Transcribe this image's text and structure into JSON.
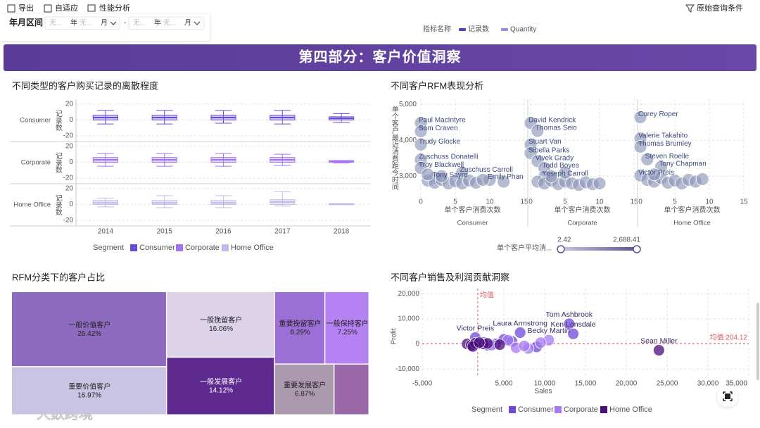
{
  "toolbar": {
    "export": "导出",
    "adaptive": "自适应",
    "performance": "性能分析",
    "query": "原始查询条件"
  },
  "filter": {
    "label": "年月区间",
    "placeholder": "无...",
    "year": "年",
    "month": "月",
    "separator": "-"
  },
  "indicator_legend": {
    "title": "指标名称",
    "items": [
      {
        "name": "记录数",
        "color": "#5b3fc4"
      },
      {
        "name": "Quantity",
        "color": "#9a8ce6"
      }
    ]
  },
  "banner": "第四部分：客户价值洞察",
  "watermark": "大数跨境",
  "chart_data": [
    {
      "type": "box",
      "title": "不同类型的客户购买记录的离散程度",
      "y_label": "记录数",
      "categories": [
        "2014",
        "2015",
        "2016",
        "2017",
        "2018"
      ],
      "ylim": [
        -27,
        26
      ],
      "yticks": [
        -20,
        0,
        20
      ],
      "grid": true,
      "legend_title": "Segment",
      "series": [
        {
          "name": "Consumer",
          "color": "#6a4bd8",
          "min": [
            -5,
            -5,
            -4,
            -5,
            -3
          ],
          "q1": [
            0,
            0,
            0,
            0,
            0
          ],
          "median": [
            3,
            3,
            3,
            3,
            2
          ],
          "q3": [
            6,
            6,
            6,
            6,
            4
          ],
          "max": [
            12,
            12,
            12,
            12,
            8
          ]
        },
        {
          "name": "Corporate",
          "color": "#a274f0",
          "min": [
            -5,
            -5,
            -5,
            -4,
            -1
          ],
          "q1": [
            0,
            0,
            0,
            0,
            0
          ],
          "median": [
            3,
            3,
            3,
            3,
            1
          ],
          "q3": [
            6,
            6,
            6,
            6,
            2
          ],
          "max": [
            11,
            11,
            11,
            10,
            2
          ]
        },
        {
          "name": "Home Office",
          "color": "#c3b9e8",
          "min": [
            -3,
            -4,
            -4,
            -2,
            0
          ],
          "q1": [
            0,
            0,
            0,
            0,
            0
          ],
          "median": [
            2,
            2,
            2,
            3,
            0
          ],
          "q3": [
            5,
            5,
            5,
            6,
            1
          ],
          "max": [
            8,
            11,
            11,
            16,
            1
          ]
        }
      ]
    },
    {
      "type": "facet-scatter",
      "title": "不同客户RFM表现分析",
      "x_label": "单个客户消费次数",
      "y_label": "单个客户最近消费距今时间",
      "xlim": [
        0,
        15
      ],
      "xticks": [
        0,
        5,
        10,
        15
      ],
      "ylim": [
        2420,
        5140
      ],
      "yticks": [
        {
          "value": 3000,
          "label": "3,000"
        },
        {
          "value": 4000,
          "label": "4,000"
        },
        {
          "value": 5000,
          "label": "5,000"
        }
      ],
      "grid": true,
      "color": "#8e97b8",
      "facets": [
        {
          "name": "Consumer",
          "x": [
            0,
            0,
            0,
            0,
            0,
            6,
            2,
            10,
            1,
            2,
            3,
            4,
            5,
            6,
            7,
            8,
            9,
            1,
            3,
            12
          ],
          "y": [
            4480,
            4250,
            3880,
            3460,
            3230,
            3100,
            2950,
            2900,
            2880,
            2820,
            2900,
            2800,
            2860,
            2800,
            2880,
            2820,
            2900,
            3050,
            3000,
            2850
          ],
          "labels": [
            "Paul MacIntyre",
            "Sam Craven",
            "Trudy Glocke",
            "Zuschuss Donatelli",
            "Troy Blackwell",
            "Zuschuss Carroll",
            "Tony Sayre",
            "Emily Phan",
            null,
            null,
            null,
            null,
            null,
            null,
            null,
            null,
            null,
            null,
            null,
            null
          ]
        },
        {
          "name": "Corporate",
          "x": [
            0,
            1,
            0,
            0,
            1,
            2,
            2,
            1,
            2,
            3,
            4,
            5,
            6,
            7,
            8,
            9,
            10,
            3,
            5
          ],
          "y": [
            4480,
            4260,
            3880,
            3640,
            3420,
            3220,
            2990,
            2850,
            2800,
            2880,
            2780,
            2850,
            2800,
            2760,
            2830,
            2780,
            2800,
            3000,
            3100
          ],
          "labels": [
            "David Kendrick",
            "Thomas Seio",
            "Stuart Van",
            "Sibella Parks",
            "Vivek Grady",
            "Todd Boyes",
            "Yoseph Carroll",
            null,
            null,
            null,
            null,
            null,
            null,
            null,
            null,
            null,
            null,
            null,
            null
          ]
        },
        {
          "name": "Home Office",
          "x": [
            0,
            0,
            0,
            1,
            3,
            0,
            1,
            2,
            3,
            4,
            5,
            6,
            7,
            8,
            9,
            2
          ],
          "y": [
            4640,
            4050,
            3820,
            3470,
            3260,
            3020,
            2900,
            2850,
            2950,
            2820,
            2880,
            2800,
            2900,
            2850,
            2920,
            3050
          ],
          "labels": [
            "Corey Roper",
            "Valerie Takahito",
            "Thomas Brumley",
            "Steven Roelle",
            "Tony Chapman",
            "Victor Preis",
            null,
            null,
            null,
            null,
            null,
            null,
            null,
            null,
            null,
            null
          ]
        }
      ],
      "slider": {
        "label": "单个客户平均消...",
        "min": 2.42,
        "max": {
          "value": 2688.41,
          "label": "2,688.41"
        }
      }
    },
    {
      "type": "treemap",
      "title": "RFM分类下的客户占比",
      "categories": [
        "一般价值客户",
        "重要价值客户",
        "一般挽留客户",
        "一般发展客户",
        "重要挽留客户",
        "一般保持客户",
        "重要发展客户",
        null
      ],
      "values": [
        26.42,
        16.97,
        16.06,
        14.12,
        8.29,
        7.25,
        6.87,
        4.02
      ],
      "value_labels": [
        "26.42%",
        "16.97%",
        "16.06%",
        "14.12%",
        "8.29%",
        "7.25%",
        "6.87%",
        null
      ],
      "colors": [
        "#8e6bbf",
        "#c9c4e4",
        "#dcd2ea",
        "#5f2a8f",
        "#9b6fd6",
        "#b482f2",
        "#ab9aae",
        "#9a68a8"
      ]
    },
    {
      "type": "scatter",
      "title": "不同客户销售及利润贡献洞察",
      "x_label": "Sales",
      "y_label": "Profit",
      "xlim": [
        -5000,
        35000
      ],
      "xticks": [
        {
          "value": -5000,
          "label": "-5,000"
        },
        {
          "value": 5000,
          "label": "5,000"
        },
        {
          "value": 10000,
          "label": "10,000"
        },
        {
          "value": 15000,
          "label": "15,000"
        },
        {
          "value": 20000,
          "label": "20,000"
        },
        {
          "value": 25000,
          "label": "25,000"
        },
        {
          "value": 30000,
          "label": "30,000"
        },
        {
          "value": 35000,
          "label": "35,000"
        }
      ],
      "ylim": [
        -13000,
        22000
      ],
      "yticks": [
        {
          "value": -10000,
          "label": "-10,000"
        },
        0,
        {
          "value": 10000,
          "label": "10,000"
        },
        {
          "value": 20000,
          "label": "20,000"
        }
      ],
      "grid": true,
      "mean_x": {
        "value": 1800,
        "label": "均值"
      },
      "mean_y": {
        "value": 204.12,
        "label": "均值:204.12"
      },
      "mean_color": "#e05a5a",
      "legend_title": "Segment",
      "series": [
        {
          "name": "Consumer",
          "color": "#6d4ad9",
          "x": [
            1500,
            7000,
            13000,
            13500,
            3000,
            5000,
            6000,
            9000,
            4000,
            2500
          ],
          "y": [
            2500,
            4500,
            8000,
            4000,
            -500,
            1800,
            1000,
            -1200,
            0,
            600
          ],
          "labels": [
            "Victor Preis",
            "Laura Armstrong",
            "Tom Ashbrook",
            "Ken Lonsdale",
            null,
            null,
            null,
            null,
            null,
            null
          ]
        },
        {
          "name": "Corporate",
          "color": "#a57af2",
          "x": [
            10500,
            2000,
            3500,
            5500,
            8000,
            6500,
            9500,
            7500
          ],
          "y": [
            1500,
            0,
            -500,
            1500,
            -1800,
            -1500,
            500,
            -800
          ],
          "labels": [
            "Becky Martin",
            null,
            null,
            null,
            null,
            null,
            null,
            null
          ]
        },
        {
          "name": "Home Office",
          "color": "#4a0e7c",
          "x": [
            24000,
            500,
            1000,
            1500,
            2500,
            3000,
            4500,
            1200,
            2000
          ],
          "y": [
            -2500,
            0,
            -500,
            300,
            0,
            200,
            -300,
            -1000,
            500
          ],
          "labels": [
            "Sean Miller",
            null,
            null,
            null,
            null,
            null,
            null,
            null,
            null
          ]
        }
      ]
    }
  ]
}
